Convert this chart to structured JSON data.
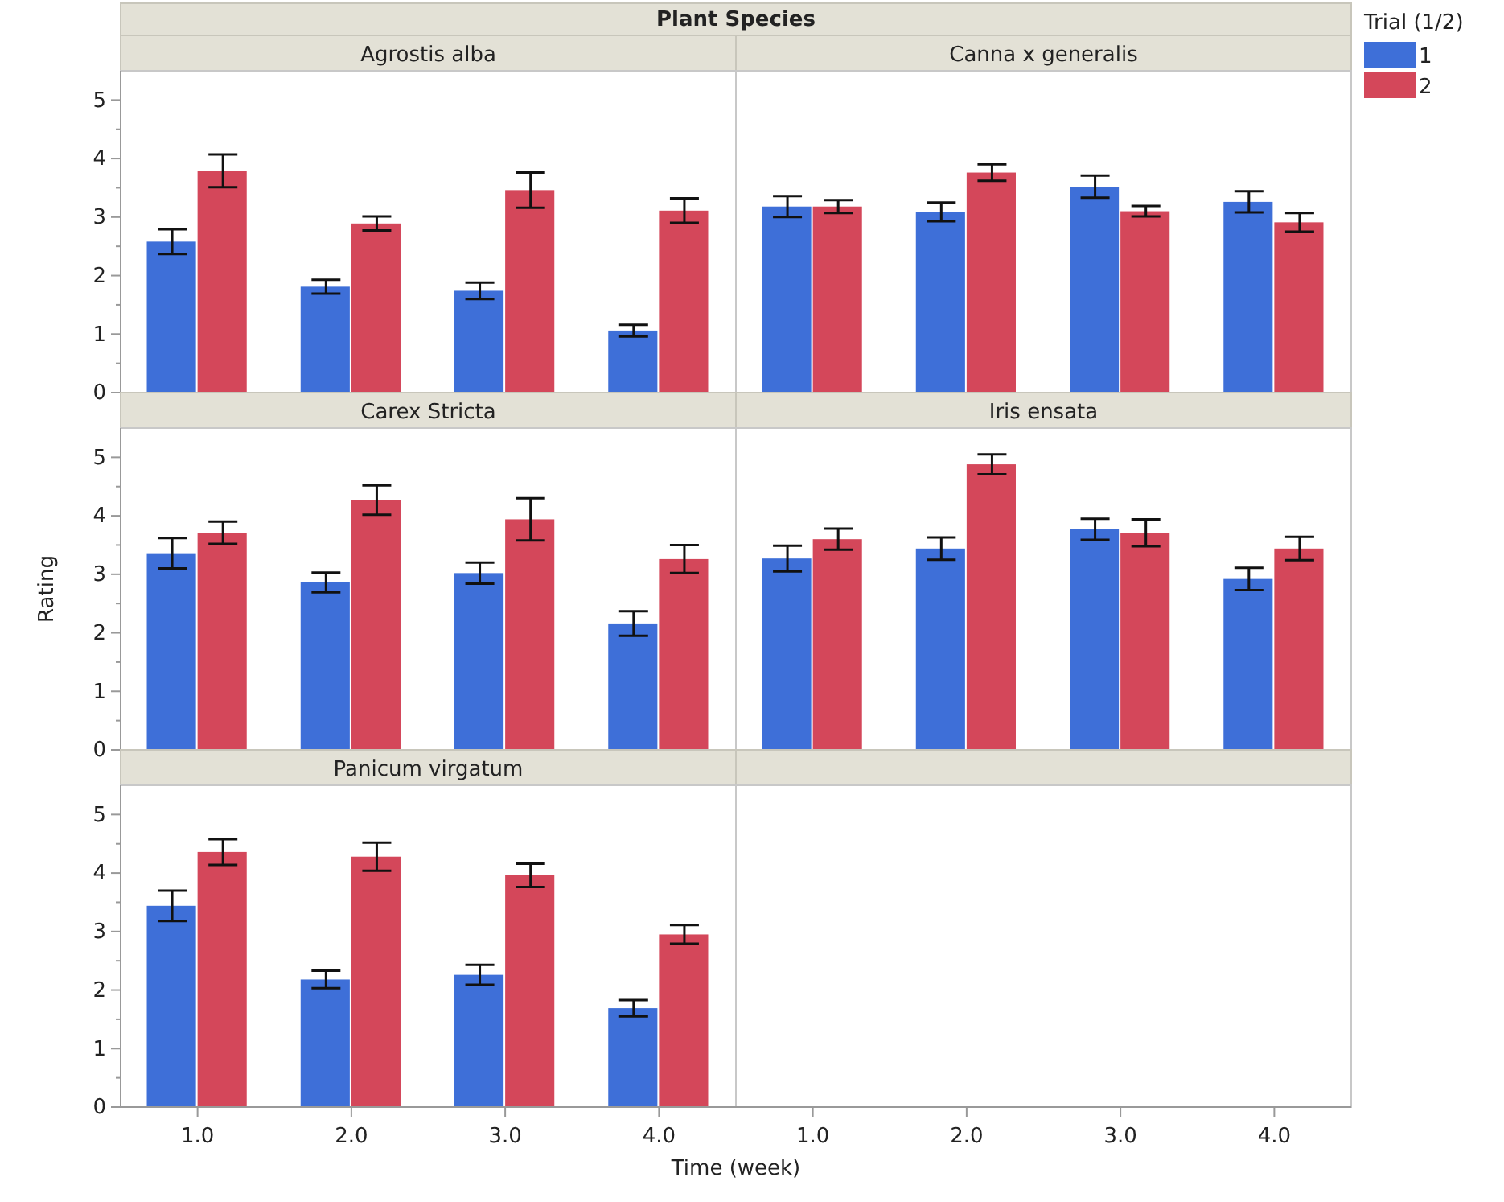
{
  "chart_data": [
    {
      "type": "bar",
      "title": "Plant Species",
      "annotations": [
        "Agrostis alba",
        "Canna x generalis"
      ],
      "categories": [
        null,
        null,
        null,
        null,
        null,
        null,
        null,
        null
      ],
      "ylim": [
        0,
        5.5
      ],
      "yticks": [
        0,
        {
          "value": 0.5,
          "label": null
        },
        1,
        {
          "value": 1.5,
          "label": null
        },
        2,
        {
          "value": 2.5,
          "label": null
        },
        3,
        {
          "value": 3.5,
          "label": null
        },
        4,
        {
          "value": 4.5,
          "label": null
        },
        5
      ],
      "tick_labels": "y",
      "legend": "right",
      "legend_title": "Trial (1/2)",
      "series": [
        {
          "name": "1",
          "color": "#3e6fd8",
          "values": [
            2.58,
            1.81,
            1.74,
            1.06,
            3.18,
            3.09,
            3.52,
            3.26
          ],
          "errors": [
            0.21,
            0.12,
            0.14,
            0.1,
            0.18,
            0.16,
            0.19,
            0.18
          ]
        },
        {
          "name": "2",
          "color": "#d4475a",
          "values": [
            3.79,
            2.89,
            3.46,
            3.11,
            3.18,
            3.76,
            3.1,
            2.91
          ],
          "errors": [
            0.28,
            0.12,
            0.3,
            0.21,
            0.11,
            0.14,
            0.09,
            0.16
          ]
        }
      ]
    },
    {
      "type": "bar",
      "annotations": [
        "Carex Stricta",
        "Iris ensata"
      ],
      "ylabel": "Rating",
      "categories": [
        null,
        null,
        null,
        null,
        null,
        null,
        null,
        null
      ],
      "ylim": [
        0,
        5.5
      ],
      "yticks": [
        0,
        {
          "value": 0.5,
          "label": null
        },
        1,
        {
          "value": 1.5,
          "label": null
        },
        2,
        {
          "value": 2.5,
          "label": null
        },
        3,
        {
          "value": 3.5,
          "label": null
        },
        4,
        {
          "value": 4.5,
          "label": null
        },
        5
      ],
      "tick_labels": "y",
      "series": [
        {
          "color": "#3e6fd8",
          "values": [
            3.36,
            2.86,
            3.02,
            2.16,
            3.27,
            3.44,
            3.77,
            2.92
          ],
          "errors": [
            0.26,
            0.17,
            0.18,
            0.21,
            0.22,
            0.19,
            0.18,
            0.19
          ]
        },
        {
          "color": "#d4475a",
          "values": [
            3.71,
            4.27,
            3.94,
            3.26,
            3.6,
            4.88,
            3.71,
            3.44
          ],
          "errors": [
            0.19,
            0.25,
            0.36,
            0.24,
            0.18,
            0.17,
            0.23,
            0.2
          ]
        }
      ]
    },
    {
      "type": "bar",
      "annotations": [
        "Panicum virgatum"
      ],
      "xlabel": "Time (week)",
      "categories": [
        "1.0",
        "2.0",
        "3.0",
        "4.0",
        "1.0",
        "2.0",
        "3.0",
        "4.0"
      ],
      "ylim": [
        0,
        5.5
      ],
      "yticks": [
        0,
        {
          "value": 0.5,
          "label": null
        },
        1,
        {
          "value": 1.5,
          "label": null
        },
        2,
        {
          "value": 2.5,
          "label": null
        },
        3,
        {
          "value": 3.5,
          "label": null
        },
        4,
        {
          "value": 4.5,
          "label": null
        },
        5
      ],
      "series": [
        {
          "color": "#3e6fd8",
          "values": [
            3.44,
            2.18,
            2.26,
            1.69,
            null,
            null,
            null,
            null
          ],
          "errors": [
            0.26,
            0.15,
            0.17,
            0.14,
            null,
            null,
            null,
            null
          ]
        },
        {
          "color": "#d4475a",
          "values": [
            4.36,
            4.28,
            3.96,
            2.95,
            null,
            null,
            null,
            null
          ],
          "errors": [
            0.22,
            0.24,
            0.2,
            0.16,
            null,
            null,
            null,
            null
          ]
        }
      ]
    }
  ]
}
